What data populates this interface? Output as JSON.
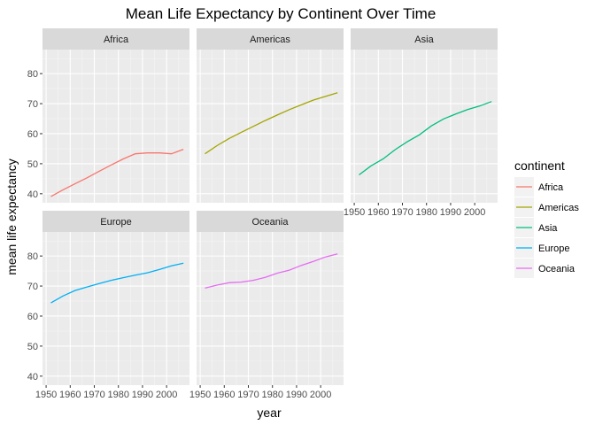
{
  "chart_data": {
    "type": "line",
    "title": "Mean Life Expectancy by Continent Over Time",
    "xlabel": "year",
    "ylabel": "mean life expectancy",
    "xlim": [
      1948.5,
      2009.5
    ],
    "ylim": [
      37,
      88
    ],
    "x_ticks": [
      1950,
      1960,
      1970,
      1980,
      1990,
      2000
    ],
    "y_ticks": [
      40,
      50,
      60,
      70,
      80
    ],
    "facet_by": "continent",
    "grid": true,
    "legend": {
      "title": "continent",
      "placement": "right"
    },
    "x": [
      1952,
      1957,
      1962,
      1967,
      1972,
      1977,
      1982,
      1987,
      1992,
      1997,
      2002,
      2007
    ],
    "series": [
      {
        "name": "Africa",
        "color": "#F8766D",
        "values": [
          39.1,
          41.3,
          43.3,
          45.3,
          47.5,
          49.6,
          51.6,
          53.3,
          53.6,
          53.6,
          53.3,
          54.8
        ]
      },
      {
        "name": "Americas",
        "color": "#A3A500",
        "values": [
          53.3,
          56.0,
          58.4,
          60.4,
          62.4,
          64.4,
          66.2,
          68.0,
          69.6,
          71.2,
          72.4,
          73.6
        ]
      },
      {
        "name": "Asia",
        "color": "#00BF7D",
        "values": [
          46.3,
          49.3,
          51.6,
          54.7,
          57.3,
          59.6,
          62.6,
          64.9,
          66.5,
          68.0,
          69.2,
          70.7
        ]
      },
      {
        "name": "Europe",
        "color": "#00B0F6",
        "values": [
          64.4,
          66.7,
          68.5,
          69.7,
          70.8,
          71.9,
          72.8,
          73.6,
          74.4,
          75.5,
          76.7,
          77.6
        ]
      },
      {
        "name": "Oceania",
        "color": "#E76BF3",
        "values": [
          69.3,
          70.3,
          71.1,
          71.3,
          71.9,
          72.9,
          74.3,
          75.3,
          76.9,
          78.2,
          79.7,
          80.7
        ]
      }
    ]
  }
}
